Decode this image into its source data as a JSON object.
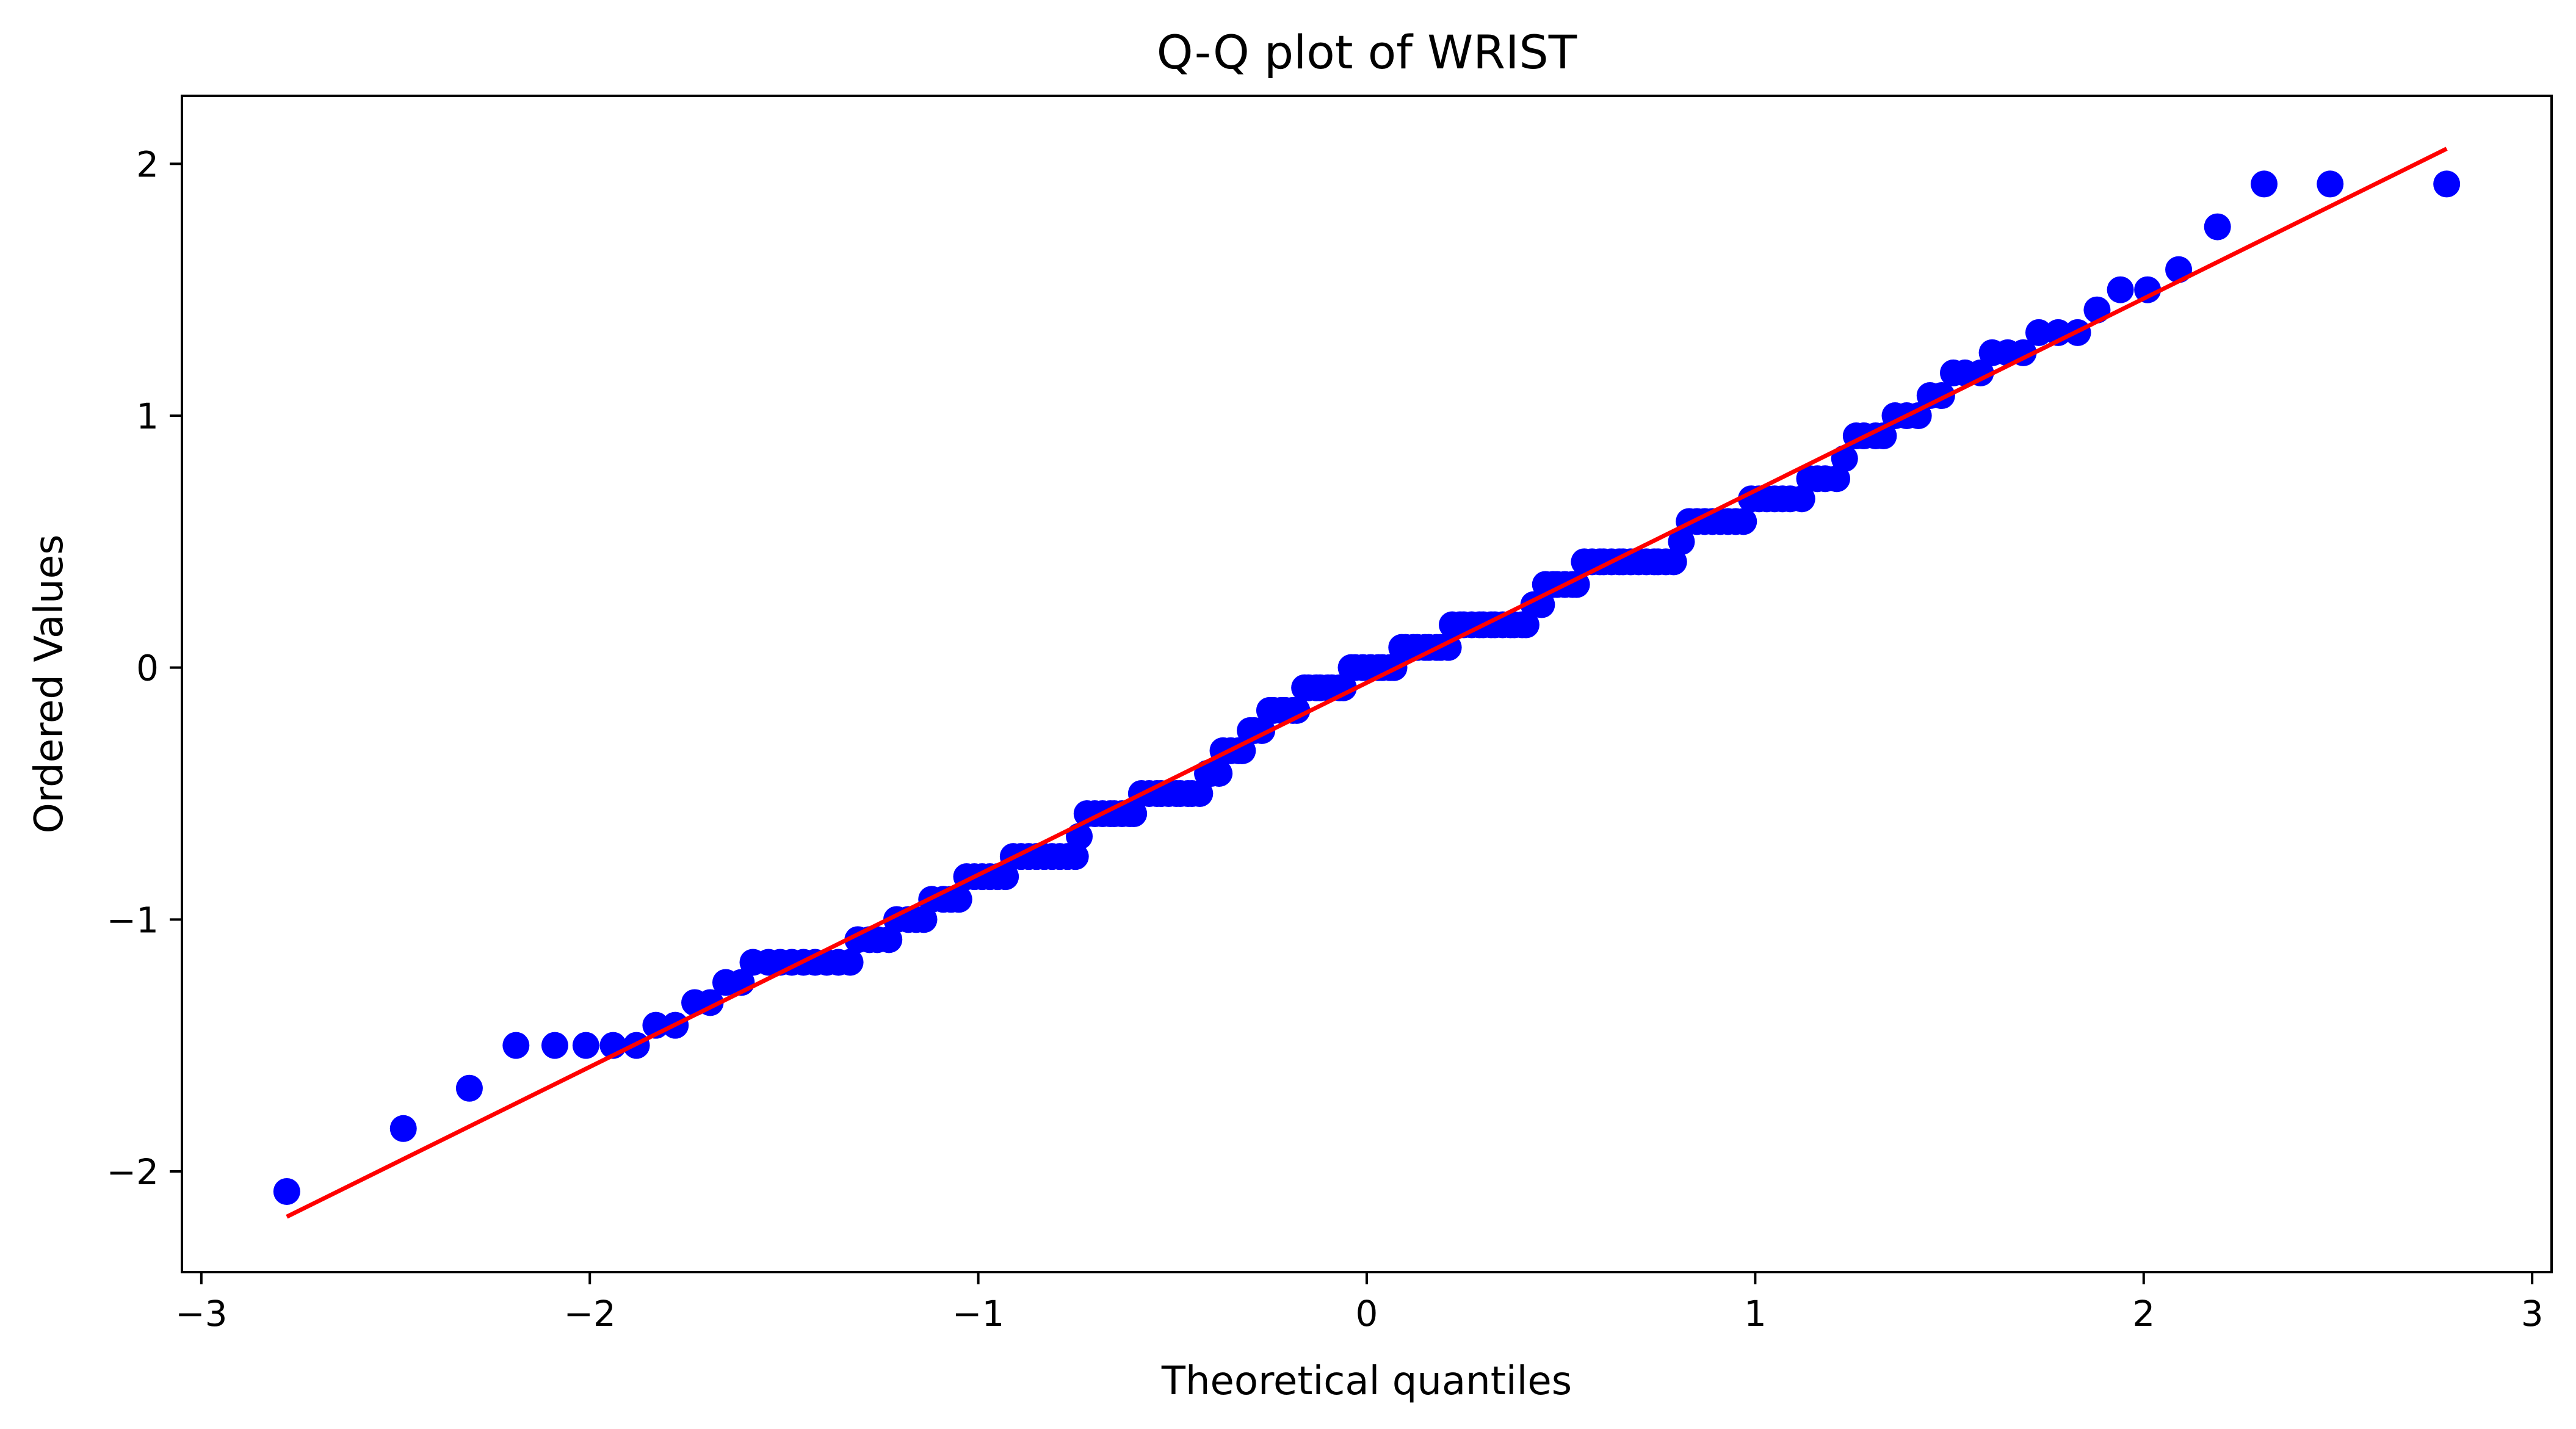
{
  "chart_data": {
    "type": "scatter",
    "title": "Q-Q plot of WRIST",
    "xlabel": "Theoretical quantiles",
    "ylabel": "Ordered Values",
    "xlim": [
      -3.05,
      3.05
    ],
    "ylim": [
      -2.4,
      2.27
    ],
    "x_ticks": [
      -3,
      -2,
      -1,
      0,
      1,
      2,
      3
    ],
    "x_tick_labels": [
      "−3",
      "−2",
      "−1",
      "0",
      "1",
      "2",
      "3"
    ],
    "y_ticks": [
      -2,
      -1,
      0,
      1,
      2
    ],
    "y_tick_labels": [
      "−2",
      "−1",
      "0",
      "1",
      "2"
    ],
    "grid": false,
    "colors": {
      "points": "#0000ff",
      "fit_line": "#ff0000",
      "axes": "#000000"
    },
    "fit_line": {
      "x": [
        -2.78,
        2.78
      ],
      "y": [
        -2.18,
        2.06
      ]
    },
    "series": [
      {
        "values_xy": [
          [
            -2.78,
            -2.08
          ],
          [
            -2.48,
            -1.83
          ],
          [
            -2.31,
            -1.67
          ],
          [
            -2.19,
            -1.5
          ],
          [
            -2.09,
            -1.5
          ],
          [
            -2.01,
            -1.5
          ],
          [
            -1.94,
            -1.5
          ],
          [
            -1.88,
            -1.5
          ],
          [
            -1.83,
            -1.42
          ],
          [
            -1.78,
            -1.42
          ],
          [
            -1.73,
            -1.33
          ],
          [
            -1.69,
            -1.33
          ],
          [
            -1.65,
            -1.25
          ],
          [
            -1.61,
            -1.25
          ],
          [
            -1.58,
            -1.17
          ],
          [
            -1.54,
            -1.17
          ],
          [
            -1.51,
            -1.17
          ],
          [
            -1.48,
            -1.17
          ],
          [
            -1.45,
            -1.17
          ],
          [
            -1.42,
            -1.17
          ],
          [
            -1.39,
            -1.17
          ],
          [
            -1.36,
            -1.17
          ],
          [
            -1.33,
            -1.17
          ],
          [
            -1.31,
            -1.08
          ],
          [
            -1.28,
            -1.08
          ],
          [
            -1.26,
            -1.08
          ],
          [
            -1.23,
            -1.08
          ],
          [
            -1.21,
            -1.0
          ],
          [
            -1.18,
            -1.0
          ],
          [
            -1.16,
            -1.0
          ],
          [
            -1.14,
            -1.0
          ],
          [
            -1.12,
            -0.92
          ],
          [
            -1.09,
            -0.92
          ],
          [
            -1.07,
            -0.92
          ],
          [
            -1.05,
            -0.92
          ],
          [
            -1.03,
            -0.83
          ],
          [
            -1.01,
            -0.83
          ],
          [
            -0.99,
            -0.83
          ],
          [
            -0.97,
            -0.83
          ],
          [
            -0.95,
            -0.83
          ],
          [
            -0.93,
            -0.83
          ],
          [
            -0.91,
            -0.75
          ],
          [
            -0.89,
            -0.75
          ],
          [
            -0.87,
            -0.75
          ],
          [
            -0.85,
            -0.75
          ],
          [
            -0.83,
            -0.75
          ],
          [
            -0.81,
            -0.75
          ],
          [
            -0.79,
            -0.75
          ],
          [
            -0.77,
            -0.75
          ],
          [
            -0.75,
            -0.75
          ],
          [
            -0.74,
            -0.67
          ],
          [
            -0.72,
            -0.58
          ],
          [
            -0.7,
            -0.58
          ],
          [
            -0.68,
            -0.58
          ],
          [
            -0.66,
            -0.58
          ],
          [
            -0.65,
            -0.58
          ],
          [
            -0.63,
            -0.58
          ],
          [
            -0.61,
            -0.58
          ],
          [
            -0.6,
            -0.58
          ],
          [
            -0.58,
            -0.5
          ],
          [
            -0.56,
            -0.5
          ],
          [
            -0.54,
            -0.5
          ],
          [
            -0.53,
            -0.5
          ],
          [
            -0.51,
            -0.5
          ],
          [
            -0.49,
            -0.5
          ],
          [
            -0.48,
            -0.5
          ],
          [
            -0.46,
            -0.5
          ],
          [
            -0.45,
            -0.5
          ],
          [
            -0.43,
            -0.5
          ],
          [
            -0.41,
            -0.42
          ],
          [
            -0.4,
            -0.42
          ],
          [
            -0.38,
            -0.42
          ],
          [
            -0.37,
            -0.33
          ],
          [
            -0.35,
            -0.33
          ],
          [
            -0.33,
            -0.33
          ],
          [
            -0.32,
            -0.33
          ],
          [
            -0.3,
            -0.25
          ],
          [
            -0.29,
            -0.25
          ],
          [
            -0.27,
            -0.25
          ],
          [
            -0.25,
            -0.17
          ],
          [
            -0.24,
            -0.17
          ],
          [
            -0.22,
            -0.17
          ],
          [
            -0.21,
            -0.17
          ],
          [
            -0.19,
            -0.17
          ],
          [
            -0.18,
            -0.17
          ],
          [
            -0.16,
            -0.08
          ],
          [
            -0.15,
            -0.08
          ],
          [
            -0.13,
            -0.08
          ],
          [
            -0.12,
            -0.08
          ],
          [
            -0.1,
            -0.08
          ],
          [
            -0.09,
            -0.08
          ],
          [
            -0.07,
            -0.08
          ],
          [
            -0.06,
            -0.08
          ],
          [
            -0.04,
            0.0
          ],
          [
            -0.03,
            0.0
          ],
          [
            -0.01,
            0.0
          ],
          [
            0.01,
            0.0
          ],
          [
            0.03,
            0.0
          ],
          [
            0.04,
            0.0
          ],
          [
            0.06,
            0.0
          ],
          [
            0.07,
            0.0
          ],
          [
            0.09,
            0.08
          ],
          [
            0.1,
            0.08
          ],
          [
            0.12,
            0.08
          ],
          [
            0.13,
            0.08
          ],
          [
            0.15,
            0.08
          ],
          [
            0.16,
            0.08
          ],
          [
            0.18,
            0.08
          ],
          [
            0.19,
            0.08
          ],
          [
            0.21,
            0.08
          ],
          [
            0.22,
            0.17
          ],
          [
            0.24,
            0.17
          ],
          [
            0.25,
            0.17
          ],
          [
            0.27,
            0.17
          ],
          [
            0.29,
            0.17
          ],
          [
            0.3,
            0.17
          ],
          [
            0.32,
            0.17
          ],
          [
            0.33,
            0.17
          ],
          [
            0.35,
            0.17
          ],
          [
            0.37,
            0.17
          ],
          [
            0.38,
            0.17
          ],
          [
            0.4,
            0.17
          ],
          [
            0.41,
            0.17
          ],
          [
            0.43,
            0.25
          ],
          [
            0.45,
            0.25
          ],
          [
            0.46,
            0.33
          ],
          [
            0.48,
            0.33
          ],
          [
            0.49,
            0.33
          ],
          [
            0.51,
            0.33
          ],
          [
            0.53,
            0.33
          ],
          [
            0.54,
            0.33
          ],
          [
            0.56,
            0.42
          ],
          [
            0.58,
            0.42
          ],
          [
            0.6,
            0.42
          ],
          [
            0.61,
            0.42
          ],
          [
            0.63,
            0.42
          ],
          [
            0.65,
            0.42
          ],
          [
            0.66,
            0.42
          ],
          [
            0.68,
            0.42
          ],
          [
            0.7,
            0.42
          ],
          [
            0.72,
            0.42
          ],
          [
            0.74,
            0.42
          ],
          [
            0.75,
            0.42
          ],
          [
            0.77,
            0.42
          ],
          [
            0.79,
            0.42
          ],
          [
            0.81,
            0.5
          ],
          [
            0.83,
            0.58
          ],
          [
            0.85,
            0.58
          ],
          [
            0.87,
            0.58
          ],
          [
            0.89,
            0.58
          ],
          [
            0.91,
            0.58
          ],
          [
            0.93,
            0.58
          ],
          [
            0.95,
            0.58
          ],
          [
            0.97,
            0.58
          ],
          [
            0.99,
            0.67
          ],
          [
            1.01,
            0.67
          ],
          [
            1.03,
            0.67
          ],
          [
            1.05,
            0.67
          ],
          [
            1.07,
            0.67
          ],
          [
            1.09,
            0.67
          ],
          [
            1.12,
            0.67
          ],
          [
            1.14,
            0.75
          ],
          [
            1.16,
            0.75
          ],
          [
            1.18,
            0.75
          ],
          [
            1.21,
            0.75
          ],
          [
            1.23,
            0.83
          ],
          [
            1.26,
            0.92
          ],
          [
            1.28,
            0.92
          ],
          [
            1.31,
            0.92
          ],
          [
            1.33,
            0.92
          ],
          [
            1.36,
            1.0
          ],
          [
            1.39,
            1.0
          ],
          [
            1.42,
            1.0
          ],
          [
            1.45,
            1.08
          ],
          [
            1.48,
            1.08
          ],
          [
            1.51,
            1.17
          ],
          [
            1.54,
            1.17
          ],
          [
            1.58,
            1.17
          ],
          [
            1.61,
            1.25
          ],
          [
            1.65,
            1.25
          ],
          [
            1.69,
            1.25
          ],
          [
            1.73,
            1.33
          ],
          [
            1.78,
            1.33
          ],
          [
            1.83,
            1.33
          ],
          [
            1.88,
            1.42
          ],
          [
            1.94,
            1.5
          ],
          [
            2.01,
            1.5
          ],
          [
            2.09,
            1.58
          ],
          [
            2.19,
            1.75
          ],
          [
            2.31,
            1.92
          ],
          [
            2.48,
            1.92
          ],
          [
            2.78,
            1.92
          ]
        ]
      }
    ]
  }
}
